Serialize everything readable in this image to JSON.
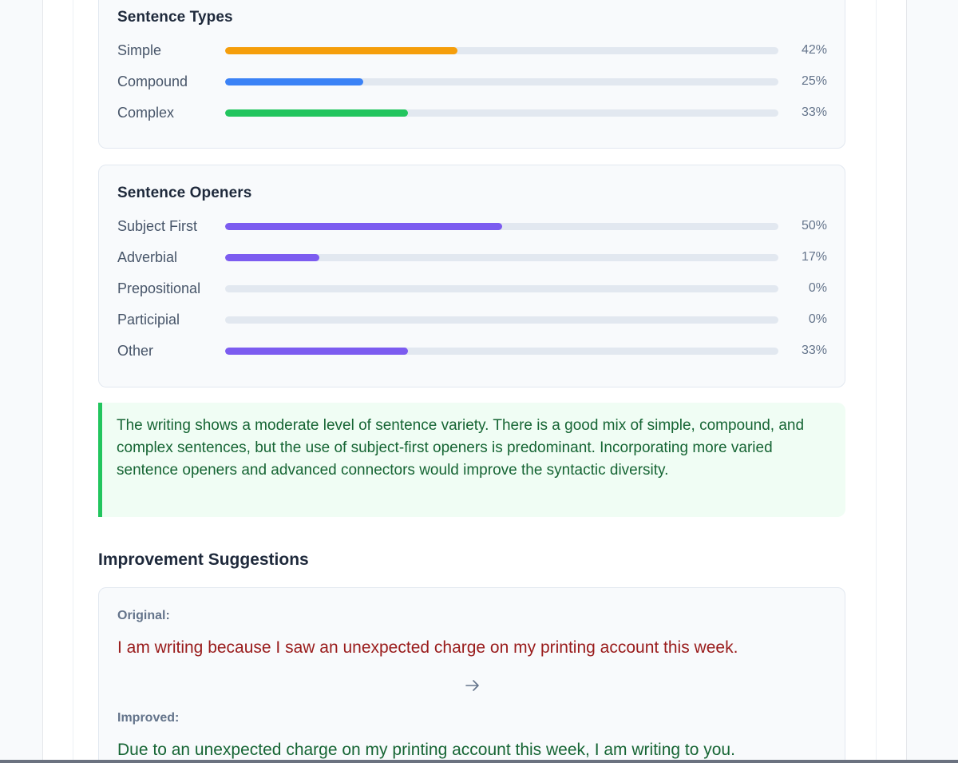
{
  "sentence_types": {
    "title": "Sentence Types",
    "rows": [
      {
        "label": "Simple",
        "percent_text": "42%",
        "value": 42,
        "color": "#f59e0b"
      },
      {
        "label": "Compound",
        "percent_text": "25%",
        "value": 25,
        "color": "#3b82f6"
      },
      {
        "label": "Complex",
        "percent_text": "33%",
        "value": 33,
        "color": "#22c55e"
      }
    ]
  },
  "sentence_openers": {
    "title": "Sentence Openers",
    "rows": [
      {
        "label": "Subject First",
        "percent_text": "50%",
        "value": 50,
        "color": "#7c5cf0"
      },
      {
        "label": "Adverbial",
        "percent_text": "17%",
        "value": 17,
        "color": "#7c5cf0"
      },
      {
        "label": "Prepositional",
        "percent_text": "0%",
        "value": 0,
        "color": "#7c5cf0"
      },
      {
        "label": "Participial",
        "percent_text": "0%",
        "value": 0,
        "color": "#7c5cf0"
      },
      {
        "label": "Other",
        "percent_text": "33%",
        "value": 33,
        "color": "#7c5cf0"
      }
    ]
  },
  "summary": "The writing shows a moderate level of sentence variety. There is a good mix of simple, compound, and complex sentences, but the use of subject-first openers is predominant. Incorporating more varied sentence openers and advanced connectors would improve the syntactic diversity.",
  "improvement": {
    "section_title": "Improvement Suggestions",
    "original_label": "Original:",
    "original_text": "I am writing because I saw an unexpected charge on my printing account this week.",
    "arrow_icon": "arrow-right-icon",
    "improved_label": "Improved:",
    "improved_text": "Due to an unexpected charge on my printing account this week, I am writing to you."
  }
}
